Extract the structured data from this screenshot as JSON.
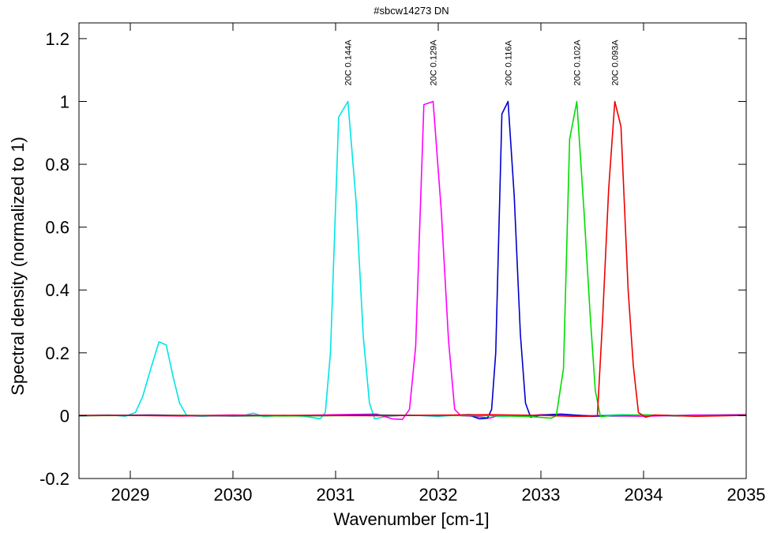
{
  "chart_data": {
    "type": "line",
    "title": "#sbcw14273 DN",
    "xlabel": "Wavenumber [cm-1]",
    "ylabel": "Spectral density (normalized to 1)",
    "xlim": [
      2028.5,
      2035
    ],
    "ylim": [
      -0.2,
      1.25
    ],
    "x_ticks": [
      {
        "value": 2029,
        "label": "2029"
      },
      {
        "value": 2030,
        "label": "2030"
      },
      {
        "value": 2031,
        "label": "2031"
      },
      {
        "value": 2032,
        "label": "2032"
      },
      {
        "value": 2033,
        "label": "2033"
      },
      {
        "value": 2034,
        "label": "2034"
      },
      {
        "value": 2035,
        "label": "2035"
      }
    ],
    "y_ticks": [
      {
        "value": -0.2,
        "label": "-0.2"
      },
      {
        "value": 0,
        "label": "0"
      },
      {
        "value": 0.2,
        "label": "0.2"
      },
      {
        "value": 0.4,
        "label": "0.4"
      },
      {
        "value": 0.6,
        "label": "0.6"
      },
      {
        "value": 0.8,
        "label": "0.8"
      },
      {
        "value": 1,
        "label": "1"
      },
      {
        "value": 1.2,
        "label": "1.2"
      }
    ],
    "grid": false,
    "series": [
      {
        "label": "20C 0.144A",
        "label_x": 2031.12,
        "color": "#00e5e5",
        "points": [
          [
            2028.5,
            0.001
          ],
          [
            2028.8,
            0.002
          ],
          [
            2028.95,
            -0.002
          ],
          [
            2029.05,
            0.01
          ],
          [
            2029.12,
            0.06
          ],
          [
            2029.2,
            0.15
          ],
          [
            2029.28,
            0.235
          ],
          [
            2029.35,
            0.225
          ],
          [
            2029.42,
            0.12
          ],
          [
            2029.48,
            0.04
          ],
          [
            2029.55,
            0.0
          ],
          [
            2029.7,
            -0.002
          ],
          [
            2029.9,
            0.001
          ],
          [
            2030.1,
            0.0
          ],
          [
            2030.2,
            0.008
          ],
          [
            2030.3,
            -0.003
          ],
          [
            2030.5,
            0.001
          ],
          [
            2030.7,
            -0.002
          ],
          [
            2030.85,
            -0.01
          ],
          [
            2030.9,
            0.01
          ],
          [
            2030.95,
            0.2
          ],
          [
            2031.03,
            0.95
          ],
          [
            2031.12,
            1.0
          ],
          [
            2031.2,
            0.68
          ],
          [
            2031.27,
            0.25
          ],
          [
            2031.33,
            0.04
          ],
          [
            2031.38,
            -0.01
          ],
          [
            2031.5,
            -0.002
          ],
          [
            2031.7,
            0.002
          ],
          [
            2032.0,
            -0.002
          ],
          [
            2032.3,
            0.004
          ],
          [
            2032.6,
            -0.002
          ],
          [
            2033.0,
            0.002
          ],
          [
            2033.4,
            -0.001
          ],
          [
            2033.8,
            0.003
          ],
          [
            2034.3,
            -0.001
          ],
          [
            2035,
            0.001
          ]
        ]
      },
      {
        "label": "20C 0.129A",
        "label_x": 2031.95,
        "color": "#ff00ff",
        "points": [
          [
            2028.5,
            0.0
          ],
          [
            2029.0,
            0.001
          ],
          [
            2029.5,
            -0.001
          ],
          [
            2030.0,
            0.002
          ],
          [
            2030.5,
            0.0
          ],
          [
            2031.0,
            0.003
          ],
          [
            2031.4,
            0.005
          ],
          [
            2031.55,
            -0.01
          ],
          [
            2031.65,
            -0.012
          ],
          [
            2031.72,
            0.02
          ],
          [
            2031.78,
            0.22
          ],
          [
            2031.86,
            0.99
          ],
          [
            2031.95,
            1.0
          ],
          [
            2032.03,
            0.65
          ],
          [
            2032.1,
            0.24
          ],
          [
            2032.16,
            0.02
          ],
          [
            2032.22,
            0.0
          ],
          [
            2032.35,
            -0.002
          ],
          [
            2032.5,
            -0.008
          ],
          [
            2032.6,
            0.002
          ],
          [
            2032.8,
            -0.002
          ],
          [
            2033.0,
            0.003
          ],
          [
            2033.5,
            0.0
          ],
          [
            2034.0,
            -0.002
          ],
          [
            2034.5,
            0.002
          ],
          [
            2035,
            0.003
          ]
        ]
      },
      {
        "label": "20C 0.116A",
        "label_x": 2032.68,
        "color": "#0000cc",
        "points": [
          [
            2028.5,
            0.0
          ],
          [
            2029.2,
            0.002
          ],
          [
            2030.0,
            -0.001
          ],
          [
            2030.8,
            0.0
          ],
          [
            2031.4,
            0.002
          ],
          [
            2032.0,
            0.0
          ],
          [
            2032.3,
            0.002
          ],
          [
            2032.4,
            -0.01
          ],
          [
            2032.48,
            -0.008
          ],
          [
            2032.52,
            0.02
          ],
          [
            2032.56,
            0.2
          ],
          [
            2032.62,
            0.96
          ],
          [
            2032.68,
            1.0
          ],
          [
            2032.74,
            0.7
          ],
          [
            2032.8,
            0.26
          ],
          [
            2032.85,
            0.04
          ],
          [
            2032.9,
            -0.005
          ],
          [
            2033.0,
            0.002
          ],
          [
            2033.2,
            0.005
          ],
          [
            2033.5,
            -0.002
          ],
          [
            2034.0,
            0.002
          ],
          [
            2034.5,
            -0.001
          ],
          [
            2035,
            0.002
          ]
        ]
      },
      {
        "label": "20C 0.102A",
        "label_x": 2033.35,
        "color": "#00dd00",
        "points": [
          [
            2028.5,
            0.0
          ],
          [
            2029.5,
            0.001
          ],
          [
            2030.5,
            -0.001
          ],
          [
            2031.5,
            0.001
          ],
          [
            2032.5,
            0.0
          ],
          [
            2032.9,
            -0.003
          ],
          [
            2033.1,
            -0.008
          ],
          [
            2033.15,
            0.0
          ],
          [
            2033.22,
            0.15
          ],
          [
            2033.28,
            0.88
          ],
          [
            2033.35,
            1.0
          ],
          [
            2033.42,
            0.65
          ],
          [
            2033.48,
            0.32
          ],
          [
            2033.53,
            0.08
          ],
          [
            2033.58,
            -0.003
          ],
          [
            2033.7,
            0.001
          ],
          [
            2034.0,
            0.002
          ],
          [
            2034.5,
            -0.001
          ],
          [
            2035,
            0.001
          ]
        ]
      },
      {
        "label": "20C 0.093A",
        "label_x": 2033.72,
        "color": "#ee0000",
        "points": [
          [
            2028.5,
            0.001
          ],
          [
            2029.5,
            0.0
          ],
          [
            2030.5,
            0.001
          ],
          [
            2031.5,
            0.0
          ],
          [
            2032.5,
            0.003
          ],
          [
            2033.0,
            0.001
          ],
          [
            2033.3,
            -0.002
          ],
          [
            2033.45,
            -0.002
          ],
          [
            2033.55,
            0.0
          ],
          [
            2033.6,
            0.3
          ],
          [
            2033.66,
            0.72
          ],
          [
            2033.72,
            1.0
          ],
          [
            2033.78,
            0.92
          ],
          [
            2033.85,
            0.4
          ],
          [
            2033.9,
            0.16
          ],
          [
            2033.95,
            0.01
          ],
          [
            2034.02,
            -0.005
          ],
          [
            2034.1,
            0.002
          ],
          [
            2034.5,
            -0.002
          ],
          [
            2035,
            0.001
          ]
        ]
      }
    ]
  }
}
